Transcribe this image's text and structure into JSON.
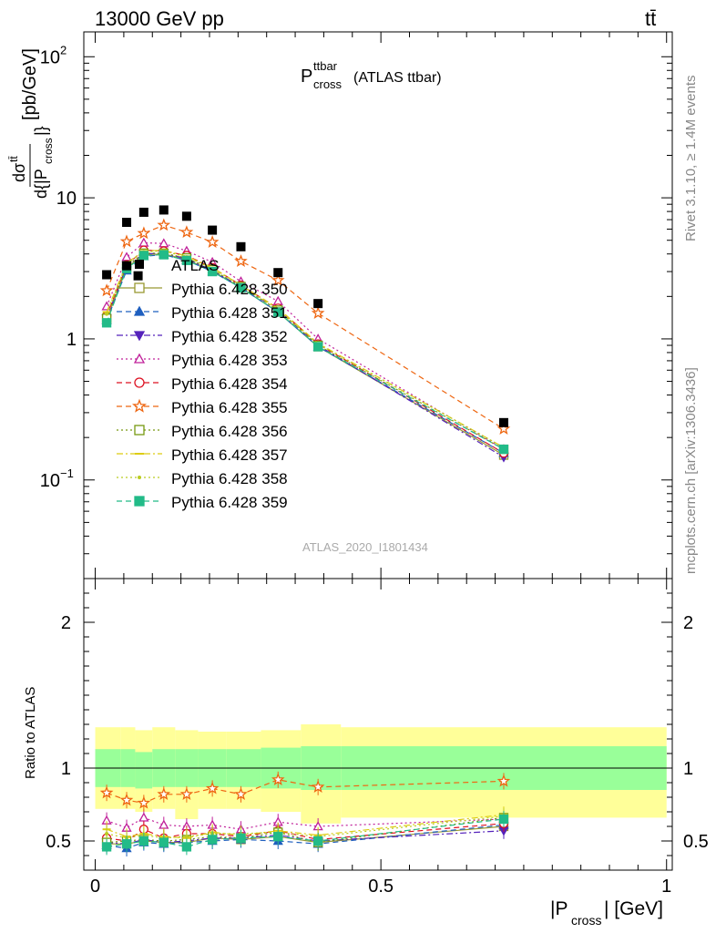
{
  "header": {
    "left": "13000 GeV pp",
    "right": "tt̄",
    "side_right_1": "Rivet 3.1.10, ≥ 1.4M events",
    "side_right_2": "mcplots.cern.ch [arXiv:1306.3436]",
    "analysis_id": "ATLAS_2020_I1801434"
  },
  "chart_data": [
    {
      "type": "scatter",
      "title_main": "P",
      "title_sup": "ttbar",
      "title_sub": "cross",
      "title_suffix": "(ATLAS ttbar)",
      "ylabel": "dσ^{tt̄} / d{|P_cross|} [pb/GeV]",
      "yscale": "log",
      "ylim": [
        0.02,
        150
      ],
      "xlim": [
        -0.02,
        1.01
      ],
      "ytick_labels": [
        "10^{-1}",
        "1",
        "10",
        "10^{2}"
      ],
      "x": [
        0.02,
        0.055,
        0.085,
        0.12,
        0.16,
        0.205,
        0.255,
        0.32,
        0.39,
        0.715
      ],
      "data": {
        "name": "ATLAS",
        "values": [
          2.85,
          6.7,
          7.9,
          8.2,
          7.4,
          5.9,
          4.5,
          2.95,
          1.78,
          0.255
        ],
        "extra": [
          {
            "x": 0.055,
            "y": 3.3
          },
          {
            "x": 0.075,
            "y": 2.8
          }
        ]
      },
      "series": [
        {
          "name": "Pythia 6.428 350",
          "color": "#999933",
          "marker": "open-square",
          "line": "solid",
          "values": [
            1.37,
            3.2,
            3.95,
            4.0,
            3.65,
            3.05,
            2.3,
            1.55,
            0.88,
            0.15
          ]
        },
        {
          "name": "Pythia 6.428 351",
          "color": "#1f5fbf",
          "marker": "filled-triangle-up",
          "line": "dashed",
          "values": [
            1.35,
            3.05,
            3.85,
            3.95,
            3.6,
            3.0,
            2.3,
            1.55,
            0.88,
            0.155
          ]
        },
        {
          "name": "Pythia 6.428 352",
          "color": "#5522bb",
          "marker": "filled-triangle-down",
          "line": "dashdot",
          "values": [
            1.4,
            3.3,
            4.0,
            4.05,
            3.7,
            3.05,
            2.35,
            1.6,
            0.9,
            0.145
          ]
        },
        {
          "name": "Pythia 6.428 353",
          "color": "#c0209a",
          "marker": "open-triangle-up",
          "line": "dotted",
          "values": [
            1.7,
            3.8,
            4.8,
            4.75,
            4.2,
            3.5,
            2.55,
            1.85,
            1.0,
            0.165
          ]
        },
        {
          "name": "Pythia 6.428 354",
          "color": "#dd1122",
          "marker": "open-circle",
          "line": "dashed",
          "values": [
            1.45,
            3.35,
            4.25,
            4.2,
            3.9,
            3.2,
            2.4,
            1.65,
            0.92,
            0.155
          ]
        },
        {
          "name": "Pythia 6.428 355",
          "color": "#ee6611",
          "marker": "open-star",
          "line": "dashed",
          "values": [
            2.2,
            4.9,
            5.6,
            6.4,
            5.7,
            4.85,
            3.55,
            2.6,
            1.52,
            0.23
          ]
        },
        {
          "name": "Pythia 6.428 356",
          "color": "#779911",
          "marker": "open-square",
          "line": "dotted",
          "values": [
            1.4,
            3.3,
            4.05,
            4.05,
            3.75,
            3.1,
            2.35,
            1.6,
            0.9,
            0.165
          ]
        },
        {
          "name": "Pythia 6.428 357",
          "color": "#ddcc11",
          "marker": "dash",
          "line": "dashdot",
          "values": [
            1.55,
            3.45,
            4.2,
            4.25,
            3.85,
            3.2,
            2.4,
            1.65,
            0.93,
            0.17
          ]
        },
        {
          "name": "Pythia 6.428 358",
          "color": "#bbcc22",
          "marker": "dot",
          "line": "dotted",
          "values": [
            1.5,
            3.4,
            4.15,
            4.2,
            3.8,
            3.15,
            2.4,
            1.6,
            0.92,
            0.17
          ]
        },
        {
          "name": "Pythia 6.428 359",
          "color": "#22bb88",
          "marker": "filled-square",
          "line": "dashed",
          "values": [
            1.3,
            3.15,
            3.9,
            3.95,
            3.6,
            3.0,
            2.3,
            1.55,
            0.88,
            0.165
          ]
        }
      ]
    },
    {
      "type": "scatter",
      "ylabel": "Ratio to ATLAS",
      "xlabel": "|P_cross| [GeV]",
      "ylim": [
        0.3,
        2.3
      ],
      "ytick_labels": [
        "0.5",
        "1",
        "2"
      ],
      "xtick_labels": [
        "0",
        "0.5",
        "1"
      ],
      "bands": {
        "edges": [
          0,
          0.045,
          0.07,
          0.1,
          0.14,
          0.18,
          0.23,
          0.29,
          0.36,
          0.43,
          1.0
        ],
        "inner_color": "#99ff99",
        "outer_color": "#ffff99",
        "inner_lo": [
          0.87,
          0.87,
          0.86,
          0.87,
          0.87,
          0.87,
          0.87,
          0.86,
          0.85,
          0.85
        ],
        "inner_hi": [
          1.13,
          1.13,
          1.11,
          1.13,
          1.13,
          1.13,
          1.13,
          1.14,
          1.15,
          1.15
        ],
        "outer_lo": [
          0.72,
          0.72,
          0.7,
          0.72,
          0.65,
          0.72,
          0.72,
          0.7,
          0.62,
          0.66
        ],
        "outer_hi": [
          1.28,
          1.28,
          1.26,
          1.28,
          1.26,
          1.25,
          1.25,
          1.26,
          1.3,
          1.28
        ]
      },
      "ratio_values": [
        [
          0.48,
          0.48,
          0.5,
          0.49,
          0.49,
          0.52,
          0.51,
          0.53,
          0.49,
          0.6
        ],
        [
          0.47,
          0.45,
          0.49,
          0.48,
          0.49,
          0.5,
          0.51,
          0.5,
          0.48,
          0.61
        ],
        [
          0.49,
          0.48,
          0.51,
          0.49,
          0.5,
          0.52,
          0.52,
          0.54,
          0.5,
          0.57
        ],
        [
          0.64,
          0.59,
          0.66,
          0.61,
          0.6,
          0.61,
          0.58,
          0.63,
          0.6,
          0.65
        ],
        [
          0.52,
          0.5,
          0.58,
          0.52,
          0.55,
          0.55,
          0.53,
          0.57,
          0.51,
          0.62
        ],
        [
          0.83,
          0.78,
          0.76,
          0.82,
          0.82,
          0.86,
          0.82,
          0.92,
          0.87,
          0.91
        ],
        [
          0.49,
          0.5,
          0.51,
          0.5,
          0.51,
          0.53,
          0.52,
          0.56,
          0.49,
          0.66
        ],
        [
          0.58,
          0.53,
          0.55,
          0.53,
          0.52,
          0.56,
          0.54,
          0.57,
          0.54,
          0.68
        ],
        [
          0.55,
          0.52,
          0.54,
          0.52,
          0.53,
          0.55,
          0.55,
          0.56,
          0.53,
          0.67
        ],
        [
          0.46,
          0.48,
          0.5,
          0.49,
          0.46,
          0.51,
          0.52,
          0.53,
          0.5,
          0.65
        ]
      ]
    }
  ]
}
